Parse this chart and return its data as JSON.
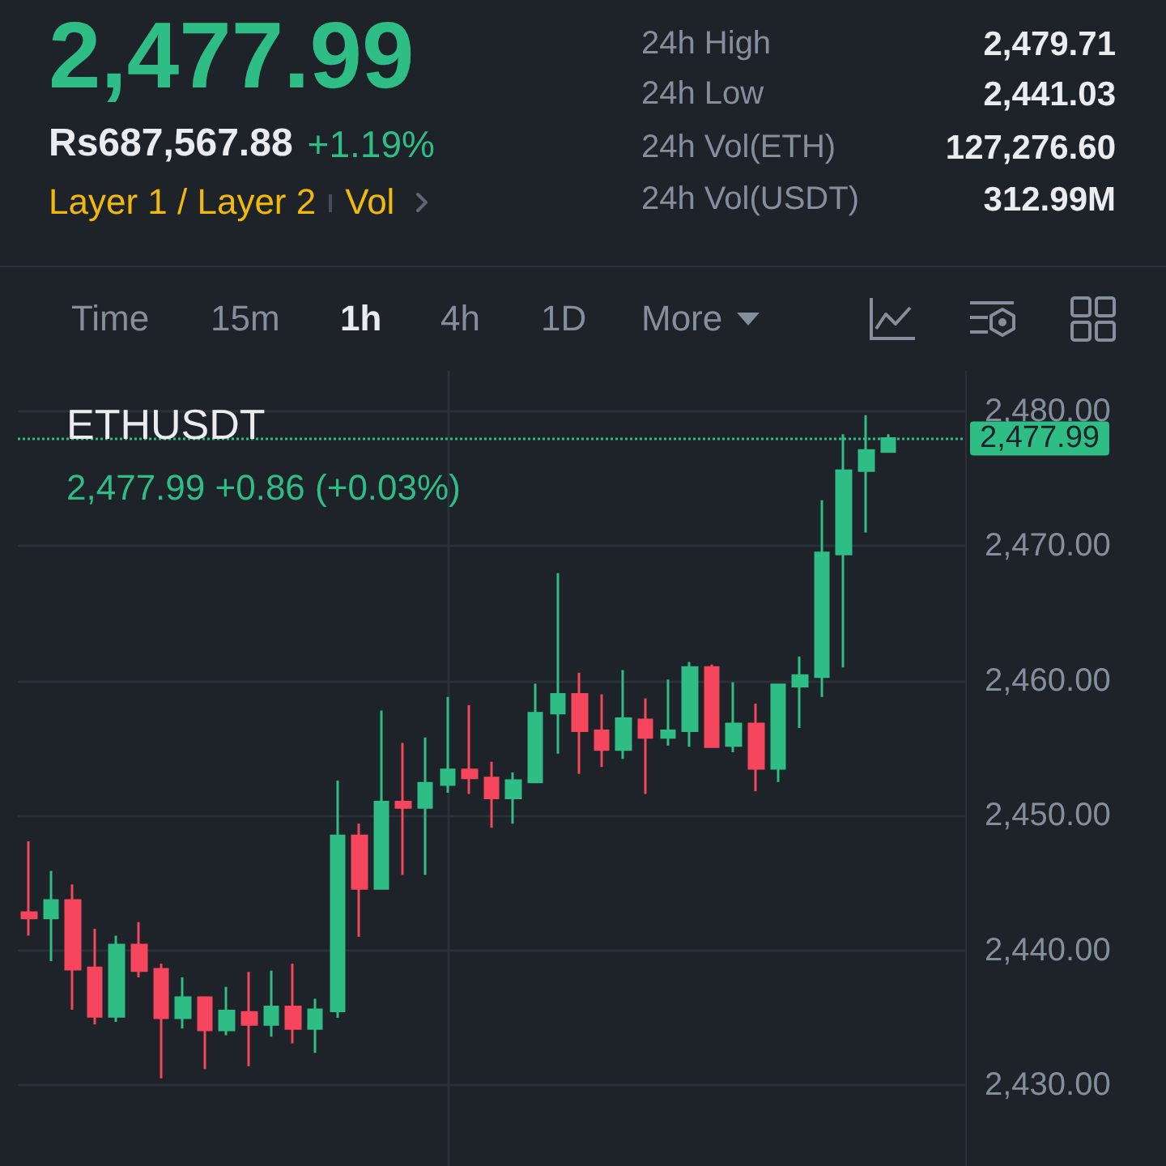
{
  "chart_data": {
    "type": "candlestick",
    "title": "ETHUSDT",
    "subtitle": "2,477.99 +0.86 (+0.03%)",
    "annotations": [
      "2,477.99",
      "Rs687,567.88",
      "+1.19%",
      "Layer 1 / Layer 2",
      "Vol",
      "24h High",
      "2,479.71",
      "24h Low",
      "2,441.03",
      "24h Vol(ETH)",
      "127,276.60",
      "24h Vol(USDT)",
      "312.99M",
      "Time",
      "15m",
      "1h",
      "4h",
      "1D",
      "More"
    ],
    "categories": [
      null,
      null,
      null,
      null,
      null,
      null,
      null,
      null,
      null,
      null,
      null,
      null,
      null,
      null,
      null,
      null,
      null,
      null,
      null,
      null,
      null,
      null,
      null,
      null,
      null,
      null,
      null,
      null,
      null,
      null,
      null,
      null,
      null,
      null,
      null,
      null,
      null,
      null,
      null,
      null,
      null,
      null,
      null
    ],
    "ohlc": [
      [
        2442.8,
        2448.1,
        2441.1,
        2442.4
      ],
      [
        2442.4,
        2445.9,
        2439.2,
        2443.7
      ],
      [
        2443.7,
        2444.9,
        2435.6,
        2438.6
      ],
      [
        2438.7,
        2441.6,
        2434.5,
        2435.1
      ],
      [
        2435.1,
        2441.1,
        2434.7,
        2440.4
      ],
      [
        2440.4,
        2442.1,
        2438.0,
        2438.5
      ],
      [
        2438.6,
        2439.0,
        2430.5,
        2435.0
      ],
      [
        2435.0,
        2438.0,
        2434.2,
        2436.5
      ],
      [
        2436.5,
        2436.5,
        2431.2,
        2434.1
      ],
      [
        2434.1,
        2437.3,
        2433.7,
        2435.5
      ],
      [
        2435.4,
        2438.4,
        2431.4,
        2434.5
      ],
      [
        2434.5,
        2438.5,
        2433.6,
        2435.8
      ],
      [
        2435.8,
        2439.0,
        2433.1,
        2434.2
      ],
      [
        2434.2,
        2436.4,
        2432.4,
        2435.6
      ],
      [
        2435.5,
        2452.6,
        2435.0,
        2448.5
      ],
      [
        2448.5,
        2449.4,
        2441.0,
        2444.6
      ],
      [
        2444.6,
        2457.8,
        2444.5,
        2451.0
      ],
      [
        2451.0,
        2455.4,
        2445.6,
        2450.6
      ],
      [
        2450.6,
        2455.8,
        2445.6,
        2452.4
      ],
      [
        2452.3,
        2458.8,
        2451.7,
        2453.4
      ],
      [
        2453.4,
        2458.2,
        2451.6,
        2452.8
      ],
      [
        2452.8,
        2454.0,
        2449.1,
        2451.3
      ],
      [
        2451.3,
        2453.2,
        2449.4,
        2452.6
      ],
      [
        2452.5,
        2459.8,
        2452.5,
        2457.6
      ],
      [
        2457.6,
        2468.0,
        2454.6,
        2459.0
      ],
      [
        2459.0,
        2460.6,
        2453.1,
        2456.3
      ],
      [
        2456.3,
        2459.0,
        2453.6,
        2454.9
      ],
      [
        2454.9,
        2460.8,
        2454.2,
        2457.2
      ],
      [
        2457.1,
        2458.7,
        2451.6,
        2455.8
      ],
      [
        2455.8,
        2460.1,
        2455.2,
        2456.3
      ],
      [
        2456.3,
        2461.4,
        2455.1,
        2461.0
      ],
      [
        2461.0,
        2461.2,
        2455.1,
        2455.1
      ],
      [
        2455.2,
        2459.9,
        2454.7,
        2456.8
      ],
      [
        2456.8,
        2458.3,
        2451.8,
        2453.5
      ],
      [
        2453.5,
        2459.8,
        2452.5,
        2459.7
      ],
      [
        2459.6,
        2461.8,
        2456.5,
        2460.4
      ],
      [
        2460.3,
        2473.4,
        2458.8,
        2469.5
      ],
      [
        2469.4,
        2478.3,
        2461.0,
        2475.6
      ],
      [
        2475.6,
        2479.71,
        2471.0,
        2477.1
      ],
      [
        2477.0,
        2478.3,
        2477.0,
        2477.99
      ],
      null,
      null,
      null
    ],
    "colors": [
      "#f6465d",
      "#2ebd85",
      "#f6465d",
      "#f6465d",
      "#2ebd85",
      "#f6465d",
      "#f6465d",
      "#2ebd85",
      "#f6465d",
      "#2ebd85",
      "#f6465d",
      "#2ebd85",
      "#f6465d",
      "#2ebd85",
      "#2ebd85",
      "#f6465d",
      "#2ebd85",
      "#f6465d",
      "#2ebd85",
      "#2ebd85",
      "#f6465d",
      "#f6465d",
      "#2ebd85",
      "#2ebd85",
      "#2ebd85",
      "#f6465d",
      "#f6465d",
      "#2ebd85",
      "#f6465d",
      "#2ebd85",
      "#2ebd85",
      "#f6465d",
      "#2ebd85",
      "#f6465d",
      "#2ebd85",
      "#2ebd85",
      "#2ebd85",
      "#2ebd85",
      "#2ebd85",
      "#2ebd85",
      null,
      null,
      null
    ],
    "ylim": [
      2424,
      2483
    ],
    "yticks": [
      {
        "value": 2430,
        "label": "2,430.00"
      },
      {
        "value": 2440,
        "label": "2,440.00"
      },
      {
        "value": 2450,
        "label": "2,450.00"
      },
      {
        "value": 2460,
        "label": "2,460.00"
      },
      {
        "value": 2470,
        "label": "2,470.00"
      },
      {
        "value": 2480,
        "label": "2,480.00"
      }
    ],
    "ref_lines": [
      {
        "axis": "y",
        "value": 2477.99,
        "label": "2,477.99",
        "color": "#2ebd85",
        "line_style": "dotted"
      }
    ],
    "grid": "y",
    "tick_labels": "y"
  }
}
